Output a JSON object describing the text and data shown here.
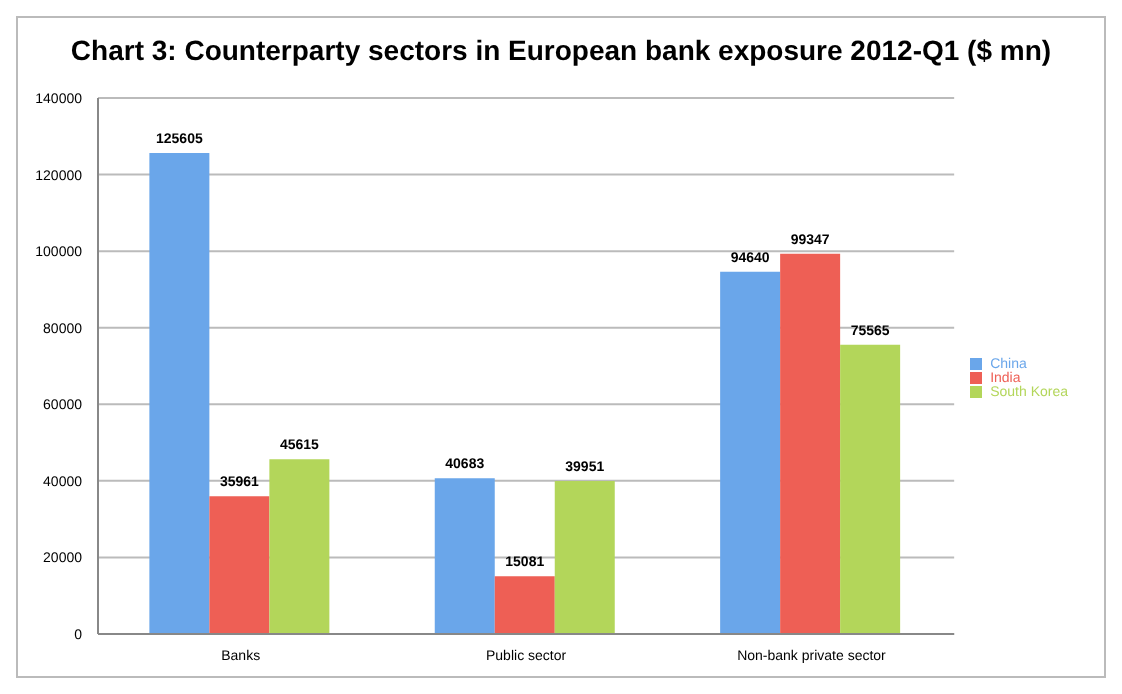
{
  "chart_data": {
    "type": "bar",
    "title": "Chart 3: Counterparty sectors in European bank exposure 2012-Q1 ($ mn)",
    "categories": [
      "Banks",
      "Public sector",
      "Non-bank private sector"
    ],
    "series": [
      {
        "name": "China",
        "color": "#6aa6ea",
        "values": [
          125605,
          40683,
          94640
        ]
      },
      {
        "name": "India",
        "color": "#ee5f55",
        "values": [
          35961,
          15081,
          99347
        ]
      },
      {
        "name": "South Korea",
        "color": "#b3d65a",
        "values": [
          45615,
          39951,
          75565
        ]
      }
    ],
    "ylim": [
      0,
      140000
    ],
    "yticks": [
      0,
      20000,
      40000,
      60000,
      80000,
      100000,
      120000,
      140000
    ],
    "grid": "y",
    "legend": "right",
    "data_labels": true
  }
}
